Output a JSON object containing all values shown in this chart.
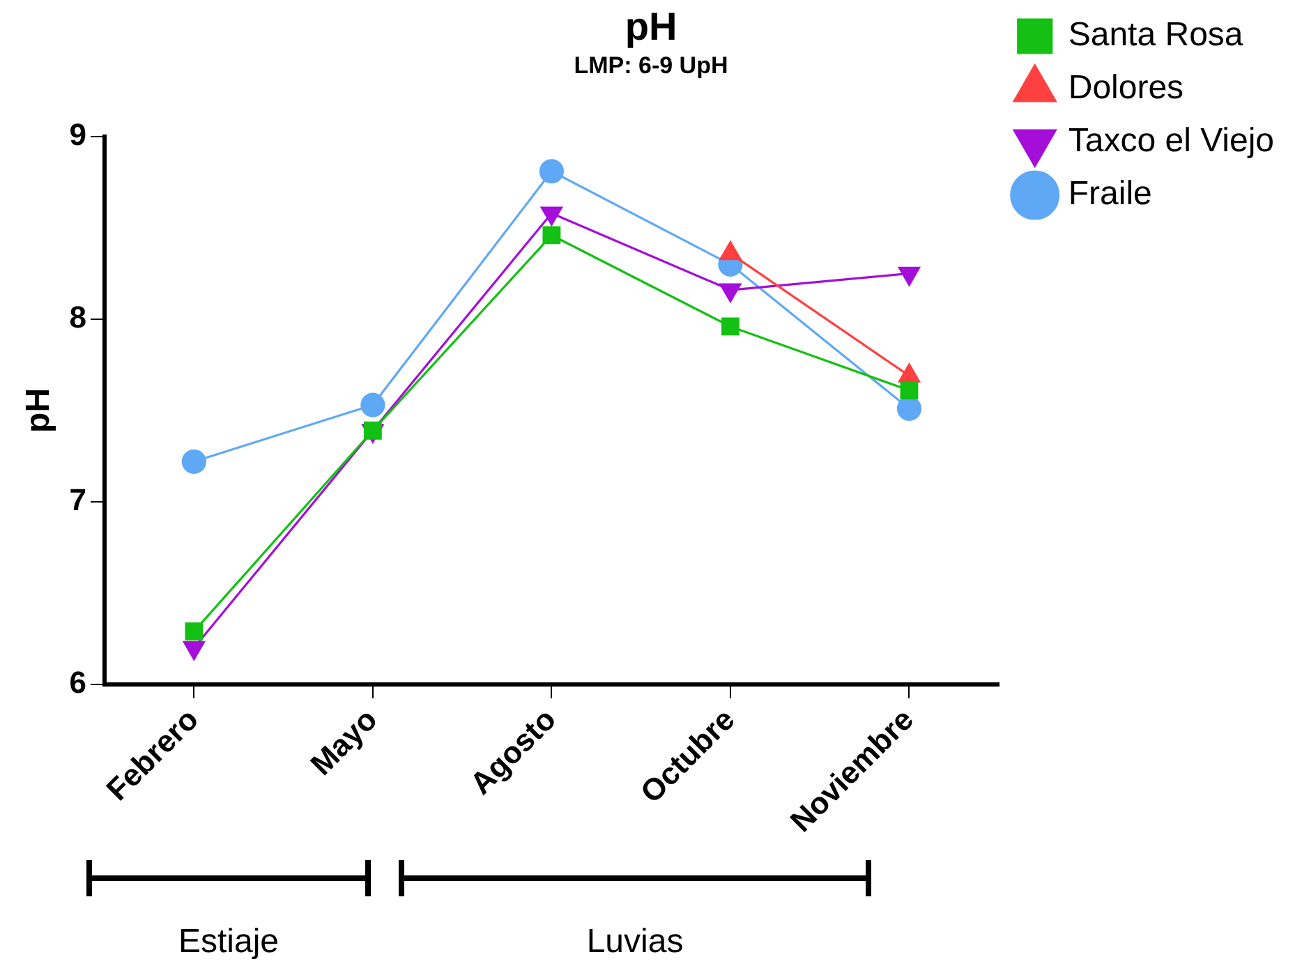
{
  "chart_data": {
    "type": "line",
    "title": "pH",
    "subtitle": "LMP: 6-9 UpH",
    "ylabel": "pH",
    "categories": [
      "Febrero",
      "Mayo",
      "Agosto",
      "Octubre",
      "Noviembre"
    ],
    "series": [
      {
        "name": "Fraile",
        "color": "#5fa8f5",
        "marker": "circle",
        "values": [
          7.22,
          7.53,
          8.81,
          8.3,
          7.51
        ]
      },
      {
        "name": "Santa Rosa",
        "color": "#13c013",
        "marker": "square",
        "values": [
          6.29,
          7.39,
          8.46,
          7.96,
          7.61
        ]
      },
      {
        "name": "Dolores",
        "color": "#ff4040",
        "marker": "triangle",
        "values": [
          null,
          null,
          null,
          8.36,
          7.69
        ]
      },
      {
        "name": "Taxco el Viejo",
        "color": "#a40ed8",
        "marker": "triangle-down",
        "values": [
          6.2,
          7.39,
          8.58,
          8.16,
          8.25
        ]
      }
    ],
    "ylim": [
      6,
      9
    ],
    "yticks": [
      6,
      7,
      8,
      9
    ],
    "grid": false,
    "legend": "right",
    "annotations": [
      "Estiaje",
      "Luvias"
    ]
  }
}
